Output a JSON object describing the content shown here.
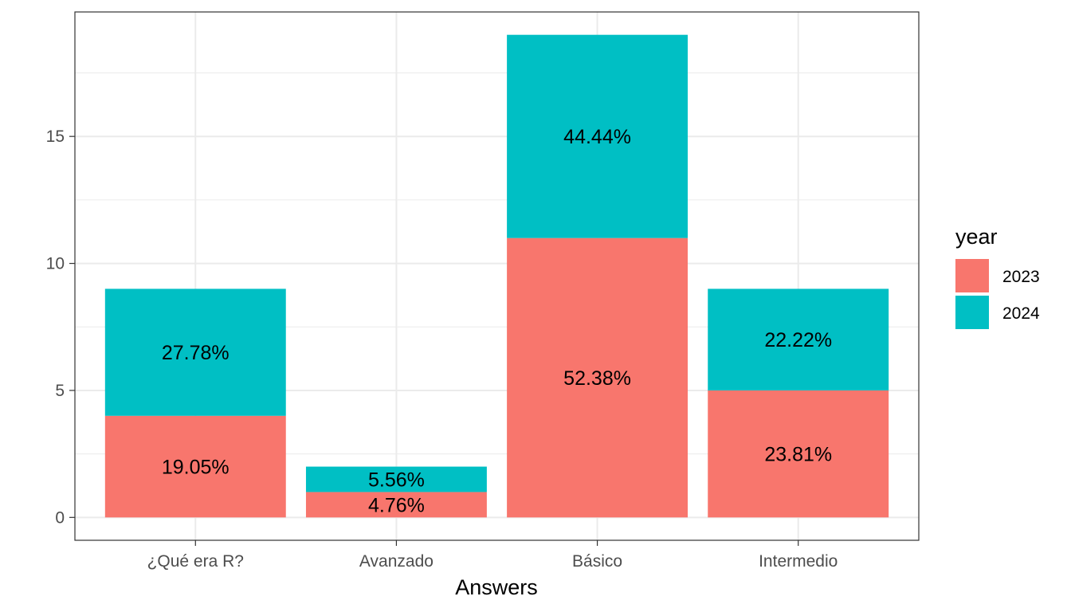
{
  "chart_data": {
    "type": "bar",
    "stacked": true,
    "xlabel": "Answers",
    "ylabel": "",
    "ylim": [
      -0.9,
      19.9
    ],
    "yticks": [
      0,
      5,
      10,
      15
    ],
    "grid": true,
    "legend_position": "right",
    "legend_title": "year",
    "categories": [
      "¿Qué era R?",
      "Avanzado",
      "Básico",
      "Intermedio"
    ],
    "series": [
      {
        "name": "2023",
        "color": "#F8766D",
        "values": [
          4,
          1,
          11,
          5
        ],
        "labels": [
          "19.05%",
          "4.76%",
          "52.38%",
          "23.81%"
        ]
      },
      {
        "name": "2024",
        "color": "#00BFC4",
        "values": [
          5,
          1,
          8,
          4
        ],
        "labels": [
          "27.78%",
          "5.56%",
          "44.44%",
          "22.22%"
        ]
      }
    ]
  }
}
